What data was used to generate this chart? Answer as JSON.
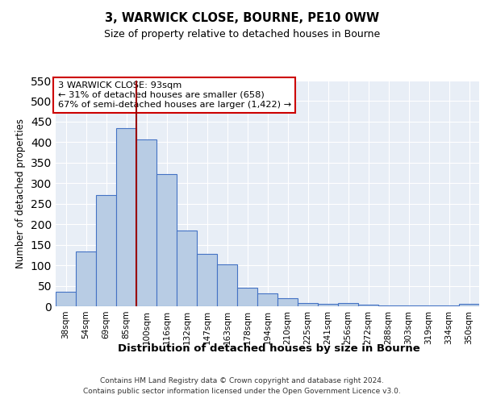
{
  "title": "3, WARWICK CLOSE, BOURNE, PE10 0WW",
  "subtitle": "Size of property relative to detached houses in Bourne",
  "xlabel": "Distribution of detached houses by size in Bourne",
  "ylabel": "Number of detached properties",
  "categories": [
    "38sqm",
    "54sqm",
    "69sqm",
    "85sqm",
    "100sqm",
    "116sqm",
    "132sqm",
    "147sqm",
    "163sqm",
    "178sqm",
    "194sqm",
    "210sqm",
    "225sqm",
    "241sqm",
    "256sqm",
    "272sqm",
    "288sqm",
    "303sqm",
    "319sqm",
    "334sqm",
    "350sqm"
  ],
  "values": [
    35,
    133,
    272,
    435,
    406,
    322,
    184,
    127,
    103,
    45,
    31,
    20,
    8,
    6,
    8,
    3,
    2,
    2,
    1,
    1,
    5
  ],
  "bar_color": "#b8cce4",
  "bar_edge_color": "#4472c4",
  "background_color": "#e8eef6",
  "grid_color": "#ffffff",
  "vline_color": "#990000",
  "vline_x": 3.5,
  "annotation_line1": "3 WARWICK CLOSE: 93sqm",
  "annotation_line2": "← 31% of detached houses are smaller (658)",
  "annotation_line3": "67% of semi-detached houses are larger (1,422) →",
  "annotation_box_color": "#ffffff",
  "annotation_box_edge_color": "#cc0000",
  "ylim": [
    0,
    550
  ],
  "yticks": [
    0,
    50,
    100,
    150,
    200,
    250,
    300,
    350,
    400,
    450,
    500,
    550
  ],
  "fig_bg_color": "#ffffff",
  "footer_line1": "Contains HM Land Registry data © Crown copyright and database right 2024.",
  "footer_line2": "Contains public sector information licensed under the Open Government Licence v3.0."
}
